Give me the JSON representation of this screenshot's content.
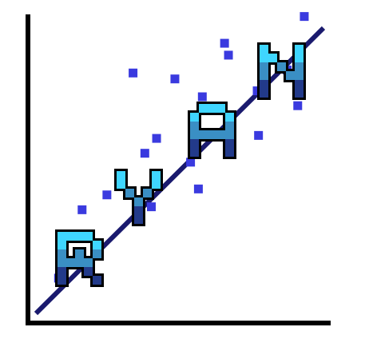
{
  "logo": {
    "letters": [
      "R",
      "Y",
      "A",
      "N"
    ],
    "word": "RYAN",
    "colors": {
      "axis": "#000000",
      "trend_line": "#1a1a6e",
      "scatter_points": "#3a3adf",
      "letter_top": "#3fd6ff",
      "letter_mid": "#3a8fc4",
      "letter_bottom": "#223a8a",
      "letter_outline": "#000000"
    }
  },
  "chart_data": {
    "type": "scatter",
    "note_free": true,
    "points": [
      [
        -8.3,
        -36
      ],
      [
        -6.5,
        -13
      ],
      [
        -4.6,
        -8
      ],
      [
        -1.7,
        6
      ],
      [
        -0.8,
        11
      ],
      [
        -1.2,
        -12
      ],
      [
        1.8,
        3
      ],
      [
        2.7,
        25
      ],
      [
        2.4,
        -6
      ],
      [
        4.7,
        39
      ],
      [
        7.0,
        12
      ],
      [
        6.9,
        27
      ],
      [
        9.2,
        34
      ],
      [
        10.0,
        22
      ],
      [
        10.5,
        52
      ],
      [
        4.4,
        43
      ],
      [
        0.6,
        31
      ],
      [
        -2.6,
        33
      ]
    ],
    "trend": {
      "from": [
        -10,
        -48
      ],
      "to": [
        12,
        48
      ]
    }
  }
}
